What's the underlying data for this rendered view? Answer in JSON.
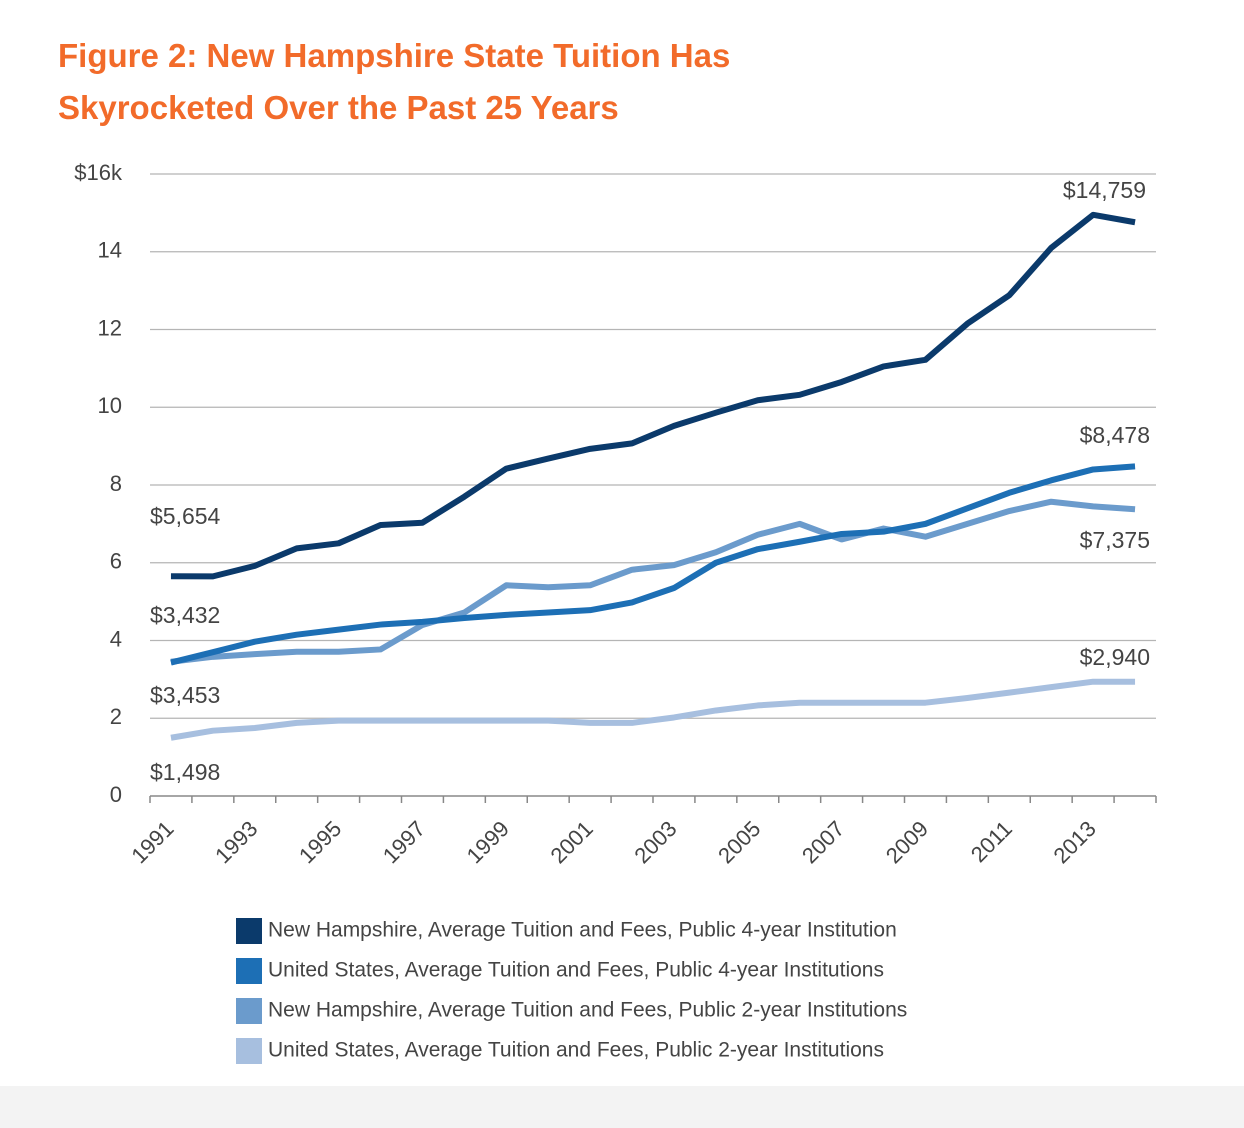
{
  "chart_data": {
    "type": "line",
    "title": "Figure 2: New Hampshire State Tuition Has Skyrocketed Over the Past 25 Years",
    "categories": [
      "1991",
      null,
      "1993",
      null,
      "1995",
      null,
      "1997",
      null,
      "1999",
      null,
      "2001",
      null,
      "2003",
      null,
      "2005",
      null,
      "2007",
      null,
      "2009",
      null,
      "2011",
      null,
      "2013",
      null
    ],
    "ylim": [
      0,
      16
    ],
    "yticks": [
      0,
      2,
      4,
      6,
      8,
      10,
      12,
      14,
      {
        "value": 16,
        "label": "$16k"
      }
    ],
    "grid": true,
    "series": [
      {
        "name": "New Hampshire, Average Tuition and Fees, Public 4-year Institution",
        "color": "#0b3a6b",
        "values": [
          5.654,
          5.65,
          5.92,
          6.37,
          6.5,
          6.97,
          7.03,
          7.7,
          8.42,
          8.68,
          8.93,
          9.07,
          9.52,
          9.86,
          10.18,
          10.32,
          10.65,
          11.05,
          11.22,
          12.15,
          12.88,
          14.1,
          14.95,
          14.759
        ],
        "value_labels": [
          "$5,654",
          null,
          null,
          null,
          null,
          null,
          null,
          null,
          null,
          null,
          null,
          null,
          null,
          null,
          null,
          null,
          null,
          null,
          null,
          null,
          null,
          null,
          null,
          "$14,759"
        ]
      },
      {
        "name": "United States, Average Tuition and Fees, Public 4-year Institutions",
        "color": "#1d6fb5",
        "values": [
          3.432,
          3.7,
          3.97,
          4.15,
          4.28,
          4.41,
          4.48,
          4.58,
          4.66,
          4.72,
          4.78,
          4.98,
          5.35,
          6.0,
          6.35,
          6.54,
          6.74,
          6.8,
          7.0,
          7.4,
          7.8,
          8.12,
          8.4,
          8.478
        ],
        "value_labels": [
          "$3,432",
          null,
          null,
          null,
          null,
          null,
          null,
          null,
          null,
          null,
          null,
          null,
          null,
          null,
          null,
          null,
          null,
          null,
          null,
          null,
          null,
          null,
          null,
          "$8,478"
        ]
      },
      {
        "name": "New Hampshire, Average Tuition and Fees, Public 2-year Institutions",
        "color": "#6b9bcc",
        "values": [
          3.453,
          3.58,
          3.65,
          3.71,
          3.71,
          3.77,
          4.4,
          4.72,
          5.42,
          5.37,
          5.42,
          5.82,
          5.94,
          6.27,
          6.72,
          7.0,
          6.6,
          6.88,
          6.67,
          7.0,
          7.33,
          7.57,
          7.45,
          7.375
        ],
        "value_labels": [
          "$3,453",
          null,
          null,
          null,
          null,
          null,
          null,
          null,
          null,
          null,
          null,
          null,
          null,
          null,
          null,
          null,
          null,
          null,
          null,
          null,
          null,
          null,
          null,
          "$7,375"
        ]
      },
      {
        "name": "United States, Average Tuition and Fees, Public 2-year Institutions",
        "color": "#a7bfdf",
        "values": [
          1.498,
          1.68,
          1.75,
          1.88,
          1.94,
          1.94,
          1.94,
          1.94,
          1.94,
          1.94,
          1.88,
          1.88,
          2.02,
          2.2,
          2.33,
          2.4,
          2.4,
          2.4,
          2.4,
          2.52,
          2.66,
          2.8,
          2.94,
          2.94
        ],
        "value_labels": [
          "$1,498",
          null,
          null,
          null,
          null,
          null,
          null,
          null,
          null,
          null,
          null,
          null,
          null,
          null,
          null,
          null,
          null,
          null,
          null,
          null,
          null,
          null,
          "$2,940",
          null
        ]
      }
    ]
  }
}
